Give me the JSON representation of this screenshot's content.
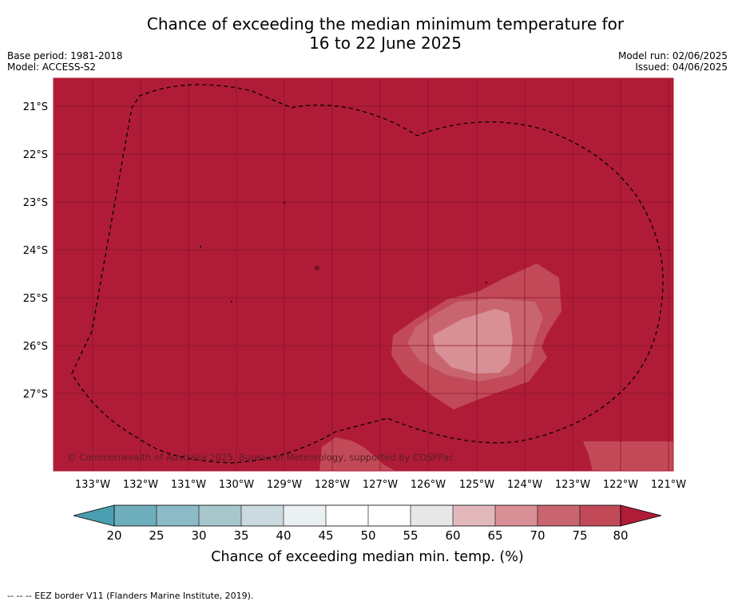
{
  "title": {
    "line1": "Chance of exceeding the median minimum temperature for",
    "line2": "16 to 22 June 2025"
  },
  "meta": {
    "base_period": "Base period: 1981-2018",
    "model": "Model: ACCESS-S2",
    "model_run": "Model run: 02/06/2025",
    "issued": "Issued: 04/06/2025"
  },
  "map": {
    "latitude_labels": [
      "21°S",
      "22°S",
      "23°S",
      "24°S",
      "25°S",
      "26°S",
      "27°S"
    ],
    "longitude_labels": [
      "133°W",
      "132°W",
      "131°W",
      "130°W",
      "129°W",
      "128°W",
      "127°W",
      "126°W",
      "125°W",
      "124°W",
      "123°W",
      "122°W",
      "121°W"
    ],
    "copyright": "© Commonwealth of Australia 2025, Bureau of Meteorology, supported by COSPPac",
    "background_class": "80+",
    "colors": {
      "c80plus": "#b01c38",
      "c75_80": "#c24a58",
      "c70_75": "#c9656f",
      "c65_70": "#d98f96",
      "eez_border": "#000000",
      "gridline": "#8a1428"
    }
  },
  "colorbar": {
    "ticks": [
      "20",
      "25",
      "30",
      "35",
      "40",
      "45",
      "50",
      "55",
      "60",
      "65",
      "70",
      "75",
      "80"
    ],
    "label": "Chance of exceeding median min. temp. (%)",
    "colors": {
      "below20": "#4aa0b0",
      "c20_25": "#6eaebd",
      "c25_30": "#8cbac6",
      "c30_35": "#a8c7cd",
      "c35_40": "#cbdade",
      "c40_45": "#ebf0f2",
      "c45_50": "#ffffff",
      "c50_55": "#ffffff",
      "c55_60": "#e8e7e8",
      "c60_65": "#e2b8bc",
      "c65_70": "#d98f96",
      "c70_75": "#c9656f",
      "c75_80": "#c24a58",
      "above80": "#b01c38"
    }
  },
  "footer": {
    "legend_note": "--  --  -- EEZ border V11 (Flanders Marine Institute, 2019)."
  }
}
